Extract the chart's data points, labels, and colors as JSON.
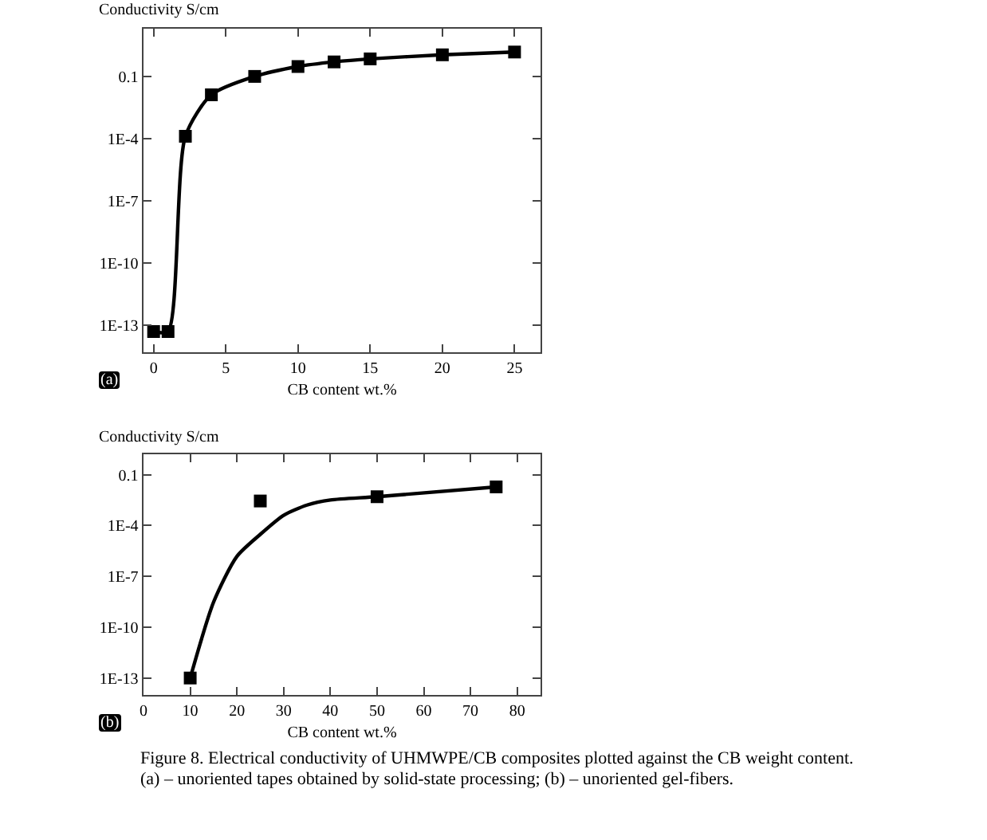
{
  "chart_data": [
    {
      "type": "line",
      "ylabel": "Conductivity S/cm",
      "xlabel": "CB content wt.%",
      "log": "y",
      "xlim": [
        -0.7,
        26.8
      ],
      "xticks": [
        0,
        5,
        10,
        15,
        20,
        25
      ],
      "ylim": [
        5e-15,
        20
      ],
      "yticks": [
        0.1,
        {
          "value": 0.0001,
          "label": "1E-4"
        },
        {
          "value": 1e-07,
          "label": "1E-7"
        },
        {
          "value": 1e-10,
          "label": "1E-10"
        },
        {
          "value": 1e-13,
          "label": "1E-13"
        }
      ],
      "grid": false,
      "legend": false,
      "x": [
        0,
        1,
        2.2,
        4,
        7,
        10,
        12.5,
        15,
        20,
        25
      ],
      "series": [
        {
          "color": "#000000",
          "marker": "square",
          "line_style": "solid",
          "values": [
            5e-14,
            5e-14,
            0.00013,
            0.013,
            0.1,
            0.3,
            0.5,
            0.7,
            1.1,
            1.5
          ]
        }
      ],
      "annotations": [
        "(a)"
      ]
    },
    {
      "type": "scatter",
      "ylabel": "Conductivity S/cm",
      "xlabel": "CB content wt.%",
      "log": "y",
      "xlim": [
        0,
        85
      ],
      "xticks": [
        0,
        10,
        20,
        30,
        40,
        50,
        60,
        70,
        80
      ],
      "ylim": [
        1e-14,
        1.6
      ],
      "yticks": [
        0.1,
        {
          "value": 0.0001,
          "label": "1E-4"
        },
        {
          "value": 1e-07,
          "label": "1E-7"
        },
        {
          "value": 1e-10,
          "label": "1E-10"
        },
        {
          "value": 1e-13,
          "label": "1E-13"
        }
      ],
      "grid": false,
      "legend": false,
      "x": [
        10,
        25,
        50,
        75.5
      ],
      "series": [
        {
          "color": "#000000",
          "marker": "square",
          "values": [
            1e-13,
            0.0028,
            0.005,
            0.019
          ]
        },
        {
          "type": "line",
          "color": "#000000",
          "marker": "none",
          "line_style": "solid",
          "x": [
            10,
            15,
            20,
            25,
            30,
            35,
            40,
            50,
            75.5
          ],
          "values": [
            1e-13,
            3e-09,
            1.5e-06,
            3e-05,
            0.0004,
            0.0016,
            0.0032,
            0.005,
            0.019
          ]
        }
      ],
      "annotations": [
        "(b)",
        "Figure 8. Electrical conductivity of UHMWPE/CB composites plotted against the CB weight content.",
        "(a) – unoriented tapes obtained by solid-state processing; (b) – unoriented gel-fibers."
      ]
    }
  ]
}
